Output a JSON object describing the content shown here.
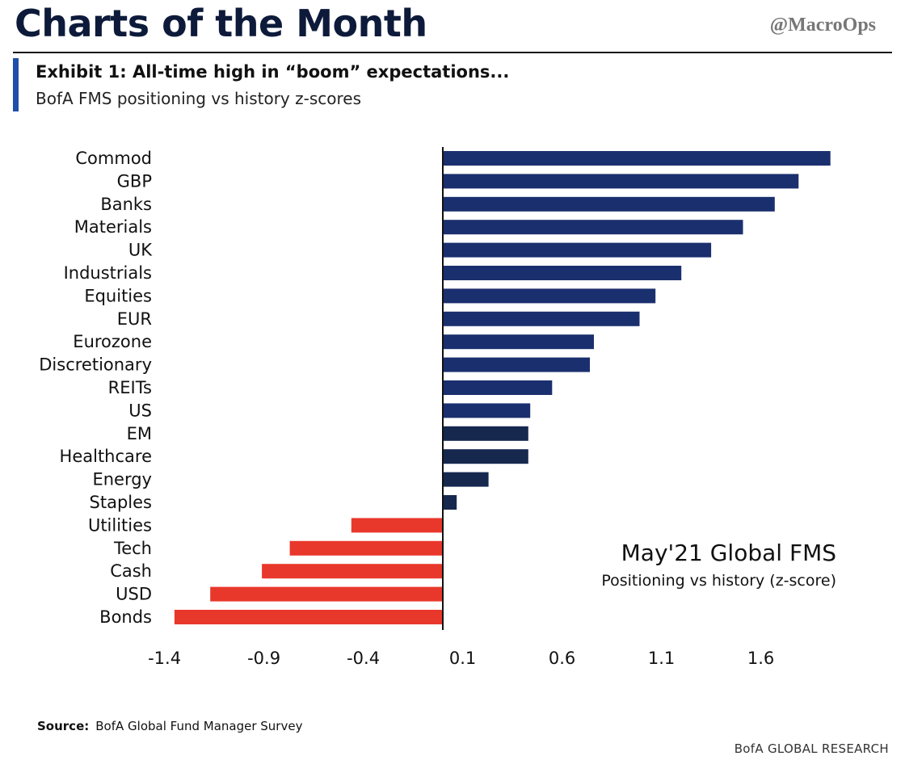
{
  "header": {
    "title": "Charts of the Month",
    "handle": "@MacroOps"
  },
  "exhibit": {
    "title": "Exhibit 1: All-time high in “boom” expectations...",
    "subtitle": "BofA FMS positioning vs history z-scores"
  },
  "colors": {
    "positive": "#1a2f6e",
    "positive_dark": "#16284e",
    "negative": "#e8382b",
    "accent": "#1f4fa8"
  },
  "chart_data": {
    "type": "bar",
    "orientation": "horizontal",
    "categories": [
      "Commod",
      "GBP",
      "Banks",
      "Materials",
      "UK",
      "Industrials",
      "Equities",
      "EUR",
      "Eurozone",
      "Discretionary",
      "REITs",
      "US",
      "EM",
      "Healthcare",
      "Energy",
      "Staples",
      "Utilities",
      "Tech",
      "Cash",
      "USD",
      "Bonds"
    ],
    "values": [
      1.95,
      1.79,
      1.67,
      1.51,
      1.35,
      1.2,
      1.07,
      0.99,
      0.76,
      0.74,
      0.55,
      0.44,
      0.43,
      0.43,
      0.23,
      0.07,
      -0.46,
      -0.77,
      -0.91,
      -1.17,
      -1.35
    ],
    "xlim": [
      -1.55,
      2.1
    ],
    "xticks": [
      -1.4,
      -0.9,
      -0.4,
      0.1,
      0.6,
      1.1,
      1.6
    ],
    "xtick_labels": [
      "-1.4",
      "-0.9",
      "-0.4",
      "0.1",
      "0.6",
      "1.1",
      "1.6"
    ],
    "annotation_title": "May'21 Global FMS",
    "annotation_subtitle": "Positioning vs history (z-score)",
    "grid": false,
    "legend": "none"
  },
  "footer": {
    "source_label": "Source:",
    "source_text": "BofA Global Fund Manager Survey",
    "credit": "BofA GLOBAL RESEARCH"
  }
}
